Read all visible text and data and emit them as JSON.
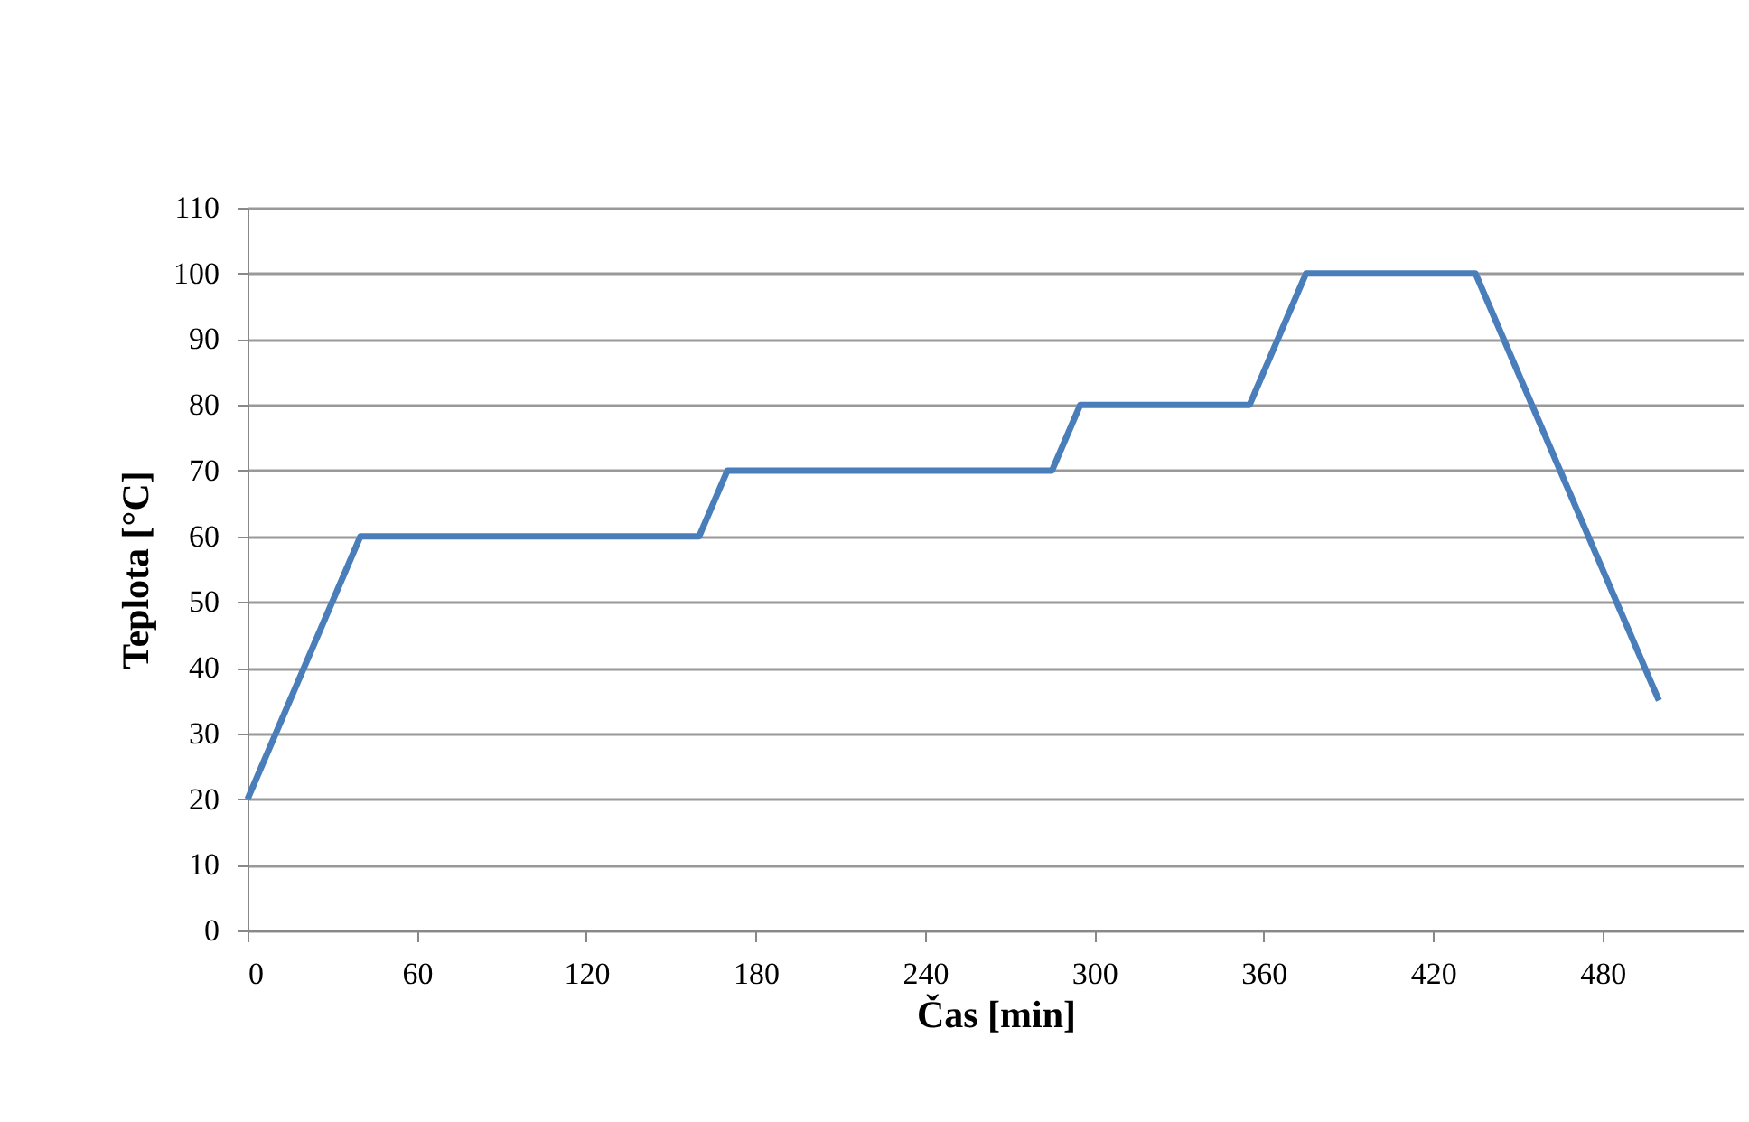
{
  "chart_data": {
    "type": "line",
    "xlabel": "Čas [min]",
    "ylabel": "Teplota [°C]",
    "x": [
      0,
      40,
      160,
      170,
      285,
      295,
      355,
      375,
      435,
      500
    ],
    "series": [
      {
        "color": "#4a7ebb",
        "values": [
          20,
          60,
          60,
          70,
          70,
          80,
          80,
          100,
          100,
          35
        ]
      }
    ],
    "xlim": [
      0,
      530
    ],
    "xticks": [
      0,
      60,
      120,
      180,
      240,
      300,
      360,
      420,
      480
    ],
    "ylim": [
      0,
      110
    ],
    "yticks": [
      0,
      10,
      20,
      30,
      40,
      50,
      60,
      70,
      80,
      90,
      100,
      110
    ],
    "grid": "y",
    "marker": "none",
    "line_style": "solid"
  }
}
